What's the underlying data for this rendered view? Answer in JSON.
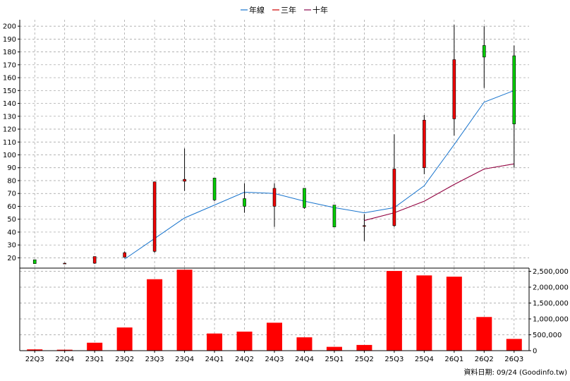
{
  "chart_data": [
    {
      "type": "candlestick",
      "legend": [
        {
          "name": "年線",
          "color": "#1874cd"
        },
        {
          "name": "三年",
          "color": "#cd0000"
        },
        {
          "name": "十年",
          "color": "#8b0a50"
        }
      ],
      "categories": [
        "22Q3",
        "22Q4",
        "23Q1",
        "23Q2",
        "23Q3",
        "23Q4",
        "24Q1",
        "24Q2",
        "24Q3",
        "24Q4",
        "25Q1",
        "25Q2",
        "25Q3",
        "25Q4",
        "26Q1",
        "26Q2",
        "26Q3"
      ],
      "ohlc": [
        {
          "open": 18.5,
          "high": 18.5,
          "low": 15.5,
          "close": 15.5
        },
        {
          "open": 15.8,
          "high": 16.2,
          "low": 15.3,
          "close": 15.8
        },
        {
          "open": 15.8,
          "high": 21,
          "low": 15.3,
          "close": 21
        },
        {
          "open": 20.5,
          "high": 25,
          "low": 20,
          "close": 24
        },
        {
          "open": 25,
          "high": 79,
          "low": 24,
          "close": 79
        },
        {
          "open": 79.5,
          "high": 105,
          "low": 72,
          "close": 81
        },
        {
          "open": 82,
          "high": 82,
          "low": 64,
          "close": 65
        },
        {
          "open": 66,
          "high": 78,
          "low": 55,
          "close": 60
        },
        {
          "open": 60,
          "high": 78,
          "low": 44,
          "close": 74
        },
        {
          "open": 74,
          "high": 74,
          "low": 58,
          "close": 59
        },
        {
          "open": 61,
          "high": 61,
          "low": 44,
          "close": 44
        },
        {
          "open": 45,
          "high": 54,
          "low": 33,
          "close": 45
        },
        {
          "open": 45,
          "high": 116,
          "low": 44,
          "close": 89
        },
        {
          "open": 90,
          "high": 131,
          "low": 85,
          "close": 127
        },
        {
          "open": 128,
          "high": 201,
          "low": 115,
          "close": 174
        },
        {
          "open": 185,
          "high": 200,
          "low": 152,
          "close": 176
        },
        {
          "open": 177,
          "high": 185,
          "low": 90,
          "close": 124
        }
      ],
      "lines": [
        {
          "name": "年線",
          "color": "#1874cd",
          "x": [
            "23Q2",
            "23Q3",
            "23Q4",
            "24Q1",
            "24Q2",
            "24Q3",
            "24Q4",
            "25Q1",
            "25Q2",
            "25Q3",
            "25Q4",
            "26Q1",
            "26Q2",
            "26Q3"
          ],
          "values": [
            19,
            35,
            51,
            61,
            71,
            70,
            64,
            59,
            55,
            59,
            76,
            108,
            141,
            150
          ]
        },
        {
          "name": "三年",
          "color": "#cd0000",
          "x": [
            "25Q2",
            "25Q3",
            "25Q4",
            "26Q1",
            "26Q2",
            "26Q3"
          ],
          "values": [
            49,
            55,
            64,
            77,
            89,
            93
          ]
        },
        {
          "name": "十年",
          "color": "#8b0a50",
          "x": [
            "25Q2",
            "25Q3",
            "25Q4",
            "26Q1",
            "26Q2",
            "26Q3"
          ],
          "values": [
            49,
            55,
            64,
            77,
            89,
            93
          ]
        }
      ],
      "y_ticks": [
        20,
        30,
        40,
        50,
        60,
        70,
        80,
        90,
        100,
        110,
        120,
        130,
        140,
        150,
        160,
        170,
        180,
        190,
        200
      ],
      "ylim": [
        12,
        205
      ],
      "up_color": "#ee0000",
      "down_color": "#00cc00",
      "grid": true
    },
    {
      "type": "bar",
      "categories": [
        "22Q3",
        "22Q4",
        "23Q1",
        "23Q2",
        "23Q3",
        "23Q4",
        "24Q1",
        "24Q2",
        "24Q3",
        "24Q4",
        "25Q1",
        "25Q2",
        "25Q3",
        "25Q4",
        "26Q1",
        "26Q2",
        "26Q3"
      ],
      "values": [
        40000,
        30000,
        250000,
        730000,
        2250000,
        2550000,
        540000,
        600000,
        880000,
        420000,
        120000,
        180000,
        2510000,
        2370000,
        2330000,
        1060000,
        370000
      ],
      "y_ticks": [
        "0",
        "500,000",
        "1,000,000",
        "1,500,000",
        "2,000,000",
        "2,500,000"
      ],
      "y_tick_values": [
        0,
        500000,
        1000000,
        1500000,
        2000000,
        2500000
      ],
      "ylim": [
        0,
        2600000
      ],
      "color": "#ff0000",
      "grid": true
    }
  ],
  "source": "資料日期: 09/24 (Goodinfo.tw)"
}
